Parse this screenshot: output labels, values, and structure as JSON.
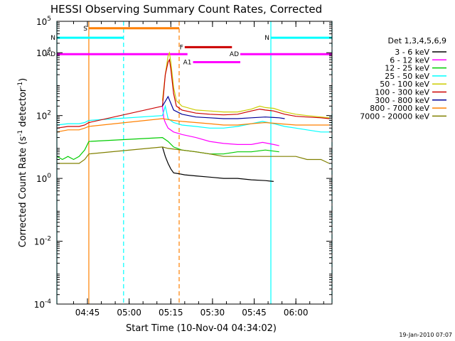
{
  "chart_data": {
    "type": "line",
    "title": "HESSI Observing Summary Count Rates, Corrected",
    "xlabel": "Start Time (10-Nov-04 04:34:02)",
    "ylabel_main": "Corrected Count Rate (s",
    "ylabel_sup1": "-1",
    "ylabel_mid": " detector",
    "ylabel_sup2": "-1",
    "ylabel_end": ")",
    "footer": "19-Jan-2010 07:07",
    "y_scale": "log",
    "ylim": [
      0.0001,
      100000
    ],
    "xlim_minutes": [
      0,
      99
    ],
    "y_ticks": [
      {
        "base": "10",
        "exp": "-4",
        "value": 0.0001
      },
      {
        "base": "10",
        "exp": "-2",
        "value": 0.01
      },
      {
        "base": "10",
        "exp": "0",
        "value": 1
      },
      {
        "base": "10",
        "exp": "2",
        "value": 100
      },
      {
        "base": "10",
        "exp": "4",
        "value": 10000
      },
      {
        "base": "10",
        "exp": "5",
        "value": 100000
      }
    ],
    "x_ticks": [
      {
        "label": "04:45",
        "minutes": 11
      },
      {
        "label": "05:00",
        "minutes": 26
      },
      {
        "label": "05:15",
        "minutes": 41
      },
      {
        "label": "05:30",
        "minutes": 56
      },
      {
        "label": "05:45",
        "minutes": 71
      },
      {
        "label": "06:00",
        "minutes": 86
      }
    ],
    "legend": {
      "header": "Det 1,3,4,5,6,9",
      "placement": "right"
    },
    "series": [
      {
        "name": "3 - 6 keV",
        "color": "#000000",
        "points": [
          [
            38,
            10
          ],
          [
            39,
            5
          ],
          [
            40,
            3
          ],
          [
            41,
            2
          ],
          [
            42,
            1.5
          ],
          [
            44,
            1.4
          ],
          [
            46,
            1.3
          ],
          [
            50,
            1.2
          ],
          [
            55,
            1.1
          ],
          [
            60,
            1
          ],
          [
            65,
            1
          ],
          [
            70,
            0.9
          ],
          [
            75,
            0.85
          ],
          [
            78,
            0.8
          ]
        ]
      },
      {
        "name": "6 - 12 keV",
        "color": "#ff00ff",
        "points": [
          [
            38,
            200
          ],
          [
            38.5,
            80
          ],
          [
            39,
            60
          ],
          [
            40,
            40
          ],
          [
            42,
            30
          ],
          [
            45,
            25
          ],
          [
            50,
            20
          ],
          [
            55,
            15
          ],
          [
            60,
            13
          ],
          [
            65,
            12
          ],
          [
            70,
            12
          ],
          [
            74,
            14
          ],
          [
            76,
            13
          ],
          [
            78,
            12
          ],
          [
            80,
            11
          ]
        ]
      },
      {
        "name": "12 - 25 keV",
        "color": "#00cc00",
        "points": [
          [
            0,
            5
          ],
          [
            2,
            4
          ],
          [
            4,
            5
          ],
          [
            6,
            4
          ],
          [
            8,
            5
          ],
          [
            10,
            8
          ],
          [
            11.5,
            15
          ],
          [
            38,
            20
          ],
          [
            40,
            15
          ],
          [
            42,
            10
          ],
          [
            45,
            8
          ],
          [
            50,
            7
          ],
          [
            55,
            6
          ],
          [
            60,
            6
          ],
          [
            65,
            7
          ],
          [
            70,
            7
          ],
          [
            75,
            8
          ],
          [
            80,
            7
          ]
        ]
      },
      {
        "name": "25 - 50 keV",
        "color": "#00ffff",
        "points": [
          [
            0,
            50
          ],
          [
            4,
            55
          ],
          [
            8,
            55
          ],
          [
            10,
            60
          ],
          [
            11.5,
            70
          ],
          [
            38,
            100
          ],
          [
            39,
            200
          ],
          [
            40,
            80
          ],
          [
            42,
            60
          ],
          [
            45,
            50
          ],
          [
            50,
            45
          ],
          [
            55,
            40
          ],
          [
            60,
            40
          ],
          [
            65,
            45
          ],
          [
            70,
            55
          ],
          [
            74,
            65
          ],
          [
            76,
            60
          ],
          [
            78,
            55
          ],
          [
            82,
            45
          ],
          [
            86,
            40
          ],
          [
            90,
            35
          ],
          [
            95,
            30
          ],
          [
            98,
            30
          ]
        ]
      },
      {
        "name": "50 - 100 keV",
        "color": "#cccc00",
        "points": [
          [
            38,
            300
          ],
          [
            39,
            2000
          ],
          [
            40,
            8000
          ],
          [
            40.5,
            10000
          ],
          [
            41,
            5000
          ],
          [
            42,
            800
          ],
          [
            43,
            300
          ],
          [
            45,
            200
          ],
          [
            50,
            150
          ],
          [
            55,
            140
          ],
          [
            60,
            130
          ],
          [
            65,
            130
          ],
          [
            70,
            160
          ],
          [
            73,
            200
          ],
          [
            75,
            180
          ],
          [
            78,
            170
          ],
          [
            82,
            130
          ],
          [
            86,
            110
          ],
          [
            90,
            100
          ],
          [
            95,
            90
          ],
          [
            98,
            85
          ]
        ]
      },
      {
        "name": "100 - 300 keV",
        "color": "#cc0000",
        "points": [
          [
            0,
            40
          ],
          [
            4,
            45
          ],
          [
            8,
            45
          ],
          [
            10,
            50
          ],
          [
            11.5,
            60
          ],
          [
            38,
            200
          ],
          [
            39,
            2000
          ],
          [
            40,
            5000
          ],
          [
            40.5,
            6000
          ],
          [
            41,
            3000
          ],
          [
            42,
            500
          ],
          [
            43,
            200
          ],
          [
            45,
            150
          ],
          [
            50,
            120
          ],
          [
            55,
            110
          ],
          [
            60,
            105
          ],
          [
            65,
            110
          ],
          [
            70,
            140
          ],
          [
            73,
            160
          ],
          [
            75,
            150
          ],
          [
            78,
            140
          ],
          [
            82,
            110
          ],
          [
            86,
            95
          ],
          [
            90,
            90
          ],
          [
            95,
            85
          ],
          [
            98,
            80
          ]
        ]
      },
      {
        "name": "300 - 800 keV",
        "color": "#000099",
        "points": [
          [
            38,
            200
          ],
          [
            40,
            400
          ],
          [
            42,
            150
          ],
          [
            45,
            110
          ],
          [
            50,
            90
          ],
          [
            55,
            85
          ],
          [
            60,
            80
          ],
          [
            65,
            80
          ],
          [
            70,
            85
          ],
          [
            75,
            90
          ],
          [
            80,
            85
          ],
          [
            82,
            80
          ]
        ]
      },
      {
        "name": "800 - 7000 keV",
        "color": "#ff8000",
        "points": [
          [
            0,
            30
          ],
          [
            4,
            35
          ],
          [
            8,
            35
          ],
          [
            10,
            40
          ],
          [
            11.5,
            45
          ],
          [
            38,
            80
          ],
          [
            42,
            70
          ],
          [
            45,
            65
          ],
          [
            50,
            60
          ],
          [
            55,
            55
          ],
          [
            60,
            50
          ],
          [
            65,
            50
          ],
          [
            70,
            55
          ],
          [
            75,
            60
          ],
          [
            80,
            55
          ],
          [
            86,
            50
          ],
          [
            90,
            50
          ],
          [
            95,
            50
          ],
          [
            98,
            50
          ]
        ]
      },
      {
        "name": "7000 - 20000 keV",
        "color": "#808000",
        "points": [
          [
            0,
            3
          ],
          [
            4,
            3
          ],
          [
            8,
            3
          ],
          [
            10,
            4
          ],
          [
            11.5,
            6
          ],
          [
            38,
            10
          ],
          [
            40,
            9
          ],
          [
            45,
            8
          ],
          [
            50,
            7
          ],
          [
            55,
            6
          ],
          [
            60,
            5
          ],
          [
            65,
            5
          ],
          [
            70,
            5
          ],
          [
            75,
            5
          ],
          [
            80,
            5
          ],
          [
            86,
            5
          ],
          [
            90,
            4
          ],
          [
            95,
            4
          ],
          [
            98,
            3
          ]
        ]
      }
    ],
    "flag_bars": [
      {
        "label": "S",
        "color": "#ff8000",
        "level": 60000,
        "start": 11.5,
        "end": 44
      },
      {
        "label": "N",
        "color": "#00ffff",
        "level": 30000,
        "start": 0,
        "end": 24
      },
      {
        "label": "N",
        "color": "#00ffff",
        "level": 30000,
        "start": 77,
        "end": 99
      },
      {
        "label": "F",
        "color": "#cc0000",
        "level": 15000,
        "start": 46,
        "end": 63
      },
      {
        "label": "AD",
        "color": "#ff00ff",
        "level": 9000,
        "start": 0,
        "end": 47
      },
      {
        "label": "AD",
        "color": "#ff00ff",
        "level": 9000,
        "start": 66,
        "end": 99
      },
      {
        "label": "A1",
        "color": "#ff00ff",
        "level": 5000,
        "start": 49,
        "end": 66
      }
    ],
    "vertical_lines": [
      {
        "color": "#00ffff",
        "style": "solid",
        "minutes": 0
      },
      {
        "color": "#ff8000",
        "style": "solid",
        "minutes": 11.5
      },
      {
        "color": "#00ffff",
        "style": "dashed",
        "minutes": 24
      },
      {
        "color": "#ff8000",
        "style": "dashed",
        "minutes": 44
      },
      {
        "color": "#00ffff",
        "style": "solid",
        "minutes": 77
      },
      {
        "color": "#00ffff",
        "style": "dashed",
        "minutes": 99
      }
    ]
  }
}
